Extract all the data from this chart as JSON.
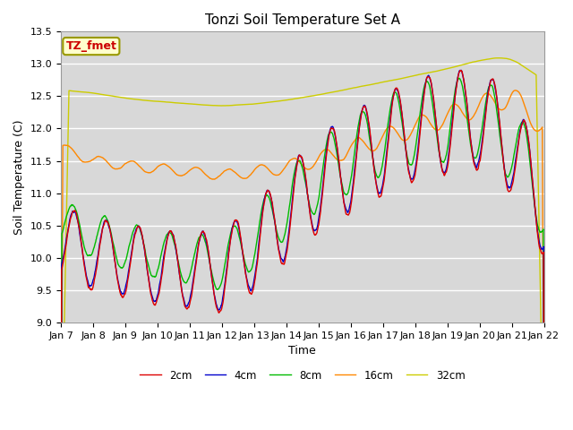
{
  "title": "Tonzi Soil Temperature Set A",
  "xlabel": "Time",
  "ylabel": "Soil Temperature (C)",
  "ylim": [
    9.0,
    13.5
  ],
  "annotation": "TZ_fmet",
  "annotation_color": "#cc0000",
  "annotation_bg": "#ffffcc",
  "annotation_border": "#999900",
  "tick_labels": [
    "Jan 7",
    "Jan 8",
    "Jan 9",
    "Jan 10",
    "Jan 11",
    "Jan 12",
    "Jan 13",
    "Jan 14",
    "Jan 15",
    "Jan 16",
    "Jan 17",
    "Jan 18",
    "Jan 19",
    "Jan 20",
    "Jan 21",
    "Jan 22"
  ],
  "legend_labels": [
    "2cm",
    "4cm",
    "8cm",
    "16cm",
    "32cm"
  ],
  "line_colors": [
    "#dd0000",
    "#0000cc",
    "#00bb00",
    "#ff8800",
    "#cccc00"
  ],
  "figure_bg": "#ffffff",
  "plot_bg": "#d8d8d8",
  "grid_color": "#ffffff",
  "title_fontsize": 11,
  "axis_fontsize": 9,
  "tick_fontsize": 8
}
